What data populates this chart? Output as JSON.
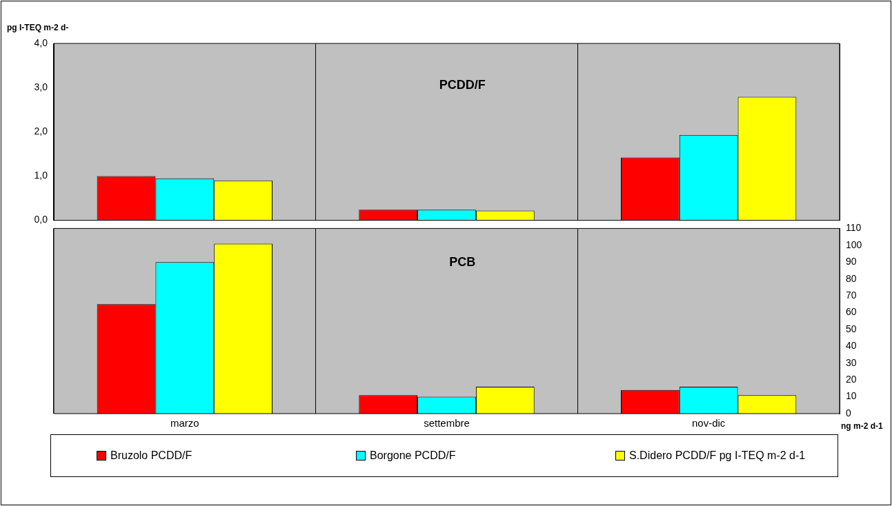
{
  "chart_data": [
    {
      "type": "bar",
      "title": "PCDD/F",
      "ylabel": "pg I-TEQ m-2 d-",
      "categories": [
        null,
        null,
        null
      ],
      "series": [
        {
          "name": "Bruzolo PCDD/F",
          "color": "#ff0000",
          "values": [
            1.0,
            0.24,
            1.42
          ]
        },
        {
          "name": "Borgone PCDD/F",
          "color": "#00ffff",
          "values": [
            0.95,
            0.24,
            1.93
          ]
        },
        {
          "name": "S.Didero PCDD/F  pg I-TEQ m-2 d-1",
          "color": "#ffff00",
          "values": [
            0.9,
            0.22,
            2.79
          ]
        }
      ],
      "ylim": [
        0,
        4
      ],
      "yticks": [
        {
          "value": 0,
          "label": "0,0"
        },
        {
          "value": 1,
          "label": "1,0"
        },
        {
          "value": 2,
          "label": "2,0"
        },
        {
          "value": 3,
          "label": "3,0"
        },
        {
          "value": 4,
          "label": "4,0"
        }
      ],
      "grid": "x",
      "legend": "bottom",
      "tick_labels": "y"
    },
    {
      "type": "bar",
      "title": "PCB",
      "y2label": "ng m-2 d-1",
      "categories": [
        "marzo",
        "settembre",
        "nov-dic"
      ],
      "series": [
        {
          "color": "#ff0000",
          "values": [
            65,
            11,
            14
          ],
          "axis": "y2"
        },
        {
          "color": "#00ffff",
          "values": [
            90,
            10,
            16
          ],
          "axis": "y2"
        },
        {
          "color": "#ffff00",
          "values": [
            101,
            16,
            11
          ],
          "axis": "y2"
        }
      ],
      "y2lim": [
        0,
        110
      ],
      "y2ticks": [
        0,
        10,
        20,
        30,
        40,
        50,
        60,
        70,
        80,
        90,
        100,
        110
      ],
      "grid": "x"
    }
  ]
}
